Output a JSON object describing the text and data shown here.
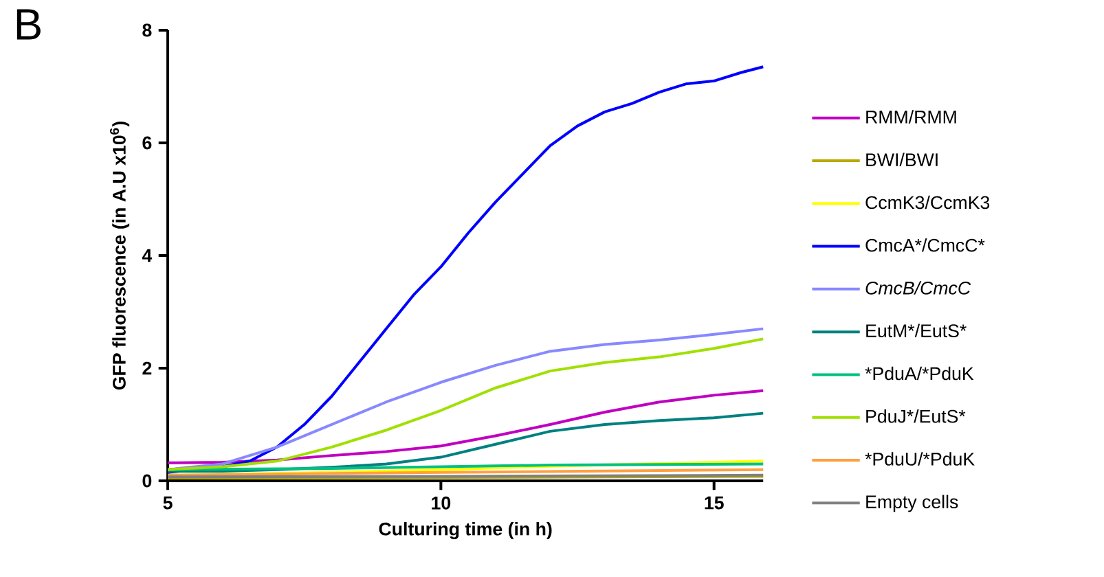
{
  "chart_data": {
    "type": "line",
    "xlabel": "Culturing time (in h)",
    "ylabel": "GFP fluorescence (in A.U x10$^{6}$)",
    "annotations": [
      "B"
    ],
    "xlim": [
      5,
      15.9
    ],
    "ylim": [
      0,
      8
    ],
    "xticks": [
      5,
      10,
      15
    ],
    "yticks": [
      0,
      2,
      4,
      6,
      8
    ],
    "legend": "right",
    "series": [
      {
        "name": "RMM/RMM",
        "color": "#c000c0",
        "x": [
          5,
          6,
          7,
          8,
          9,
          10,
          11,
          12,
          13,
          14,
          15,
          15.9
        ],
        "values": [
          0.32,
          0.33,
          0.37,
          0.45,
          0.52,
          0.62,
          0.8,
          1.0,
          1.22,
          1.4,
          1.52,
          1.6
        ]
      },
      {
        "name": "BWI/BWI",
        "color": "#b8a800",
        "x": [
          5,
          10,
          15.9
        ],
        "values": [
          0.05,
          0.06,
          0.08
        ]
      },
      {
        "name": "CcmK3/CcmK3",
        "color": "#ffff00",
        "x": [
          5,
          8,
          10,
          12,
          15.9
        ],
        "values": [
          0.1,
          0.15,
          0.2,
          0.26,
          0.35
        ]
      },
      {
        "name": "CmcA*/CmcC*",
        "color": "#0000ff",
        "x": [
          5,
          6,
          6.5,
          7,
          7.5,
          8,
          8.5,
          9,
          9.5,
          10,
          10.5,
          11,
          11.5,
          12,
          12.5,
          13,
          13.5,
          14,
          14.5,
          15,
          15.5,
          15.9
        ],
        "values": [
          0.15,
          0.25,
          0.35,
          0.6,
          1.0,
          1.5,
          2.1,
          2.7,
          3.3,
          3.8,
          4.4,
          4.95,
          5.45,
          5.95,
          6.3,
          6.55,
          6.7,
          6.9,
          7.05,
          7.1,
          7.25,
          7.35
        ]
      },
      {
        "name": "*CmcB/CmcC*",
        "color": "#8888ff",
        "x": [
          5,
          6,
          7,
          8,
          9,
          10,
          11,
          12,
          13,
          14,
          15,
          15.9
        ],
        "values": [
          0.2,
          0.3,
          0.6,
          1.0,
          1.4,
          1.75,
          2.05,
          2.3,
          2.42,
          2.5,
          2.6,
          2.7
        ]
      },
      {
        "name": "EutM*/EutS*",
        "color": "#008080",
        "x": [
          5,
          6,
          7,
          8,
          9,
          10,
          11,
          12,
          13,
          14,
          15,
          15.9
        ],
        "values": [
          0.17,
          0.17,
          0.2,
          0.24,
          0.3,
          0.42,
          0.65,
          0.88,
          1.0,
          1.07,
          1.12,
          1.2
        ]
      },
      {
        "name": "*PduA/*PduK",
        "color": "#00c080",
        "x": [
          5,
          8,
          10,
          12,
          15.9
        ],
        "values": [
          0.2,
          0.22,
          0.25,
          0.28,
          0.3
        ]
      },
      {
        "name": "PduJ*/EutS*",
        "color": "#a0e000",
        "x": [
          5,
          6,
          7,
          8,
          9,
          10,
          11,
          12,
          13,
          14,
          15,
          15.9
        ],
        "values": [
          0.2,
          0.25,
          0.35,
          0.6,
          0.9,
          1.25,
          1.65,
          1.95,
          2.1,
          2.2,
          2.35,
          2.52
        ]
      },
      {
        "name": "*PduU/*PduK",
        "color": "#ffa040",
        "x": [
          5,
          10,
          15.9
        ],
        "values": [
          0.1,
          0.15,
          0.2
        ]
      },
      {
        "name": "Empty cells",
        "color": "#808080",
        "x": [
          5,
          10,
          15.9
        ],
        "values": [
          0.07,
          0.08,
          0.1
        ]
      }
    ]
  }
}
